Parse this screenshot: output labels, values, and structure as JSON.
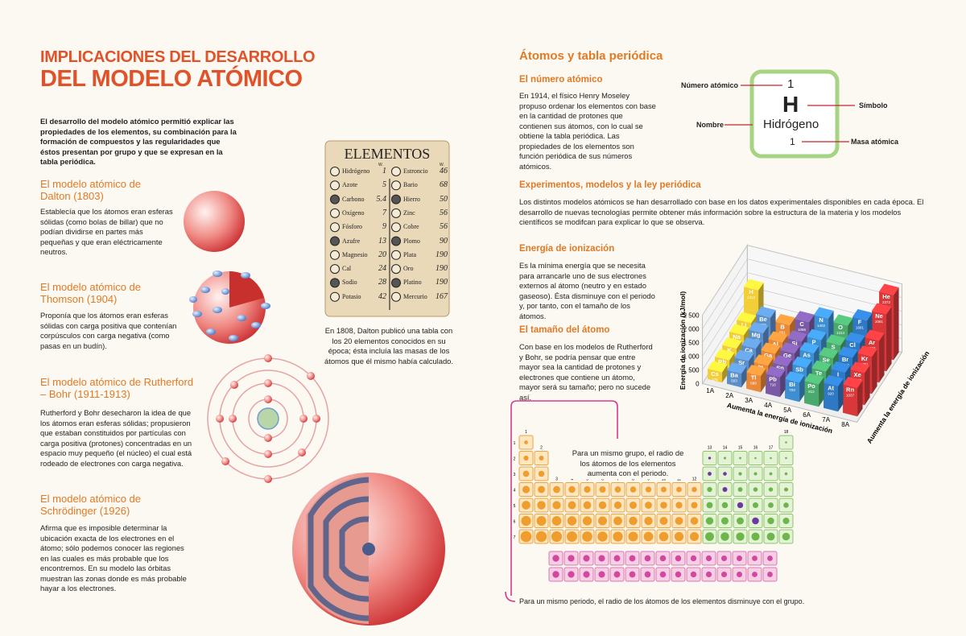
{
  "left": {
    "title": [
      "IMPLICACIONES DEL DESARROLLO",
      "DEL MODELO ATÓMICO"
    ],
    "intro": "El desarrollo del modelo atómico permitió explicar las propiedades de los elementos, su combinación para la formación de compuestos y las regularidades que éstos presentan por grupo y que se expresan en la tabla periódica.",
    "models": [
      {
        "heading": "El modelo atómico de Dalton (1803)",
        "text": "Establecía que los átomos eran esferas sólidas (como bolas de billar) que no podían dividirse en partes más pequeñas y que eran eléctricamente neutros."
      },
      {
        "heading": "El modelo atómico de Thomson (1904)",
        "text": "Proponía que los átomos eran esferas sólidas con carga positiva que contenían corpúsculos con carga negativa (como pasas en un budín)."
      },
      {
        "heading": "El modelo atómico de Rutherford – Bohr (1911-1913)",
        "text": "Rutherford y Bohr desecharon la idea de que los átomos eran esferas sólidas; propusieron que estaban constituidos por partículas con carga positiva (protones) concentradas en un espacio muy pequeño (el núcleo) el cual está rodeado de electrones con carga negativa."
      },
      {
        "heading": "El modelo atómico de Schrödinger (1926)",
        "text": "Afirma que es imposible determinar la ubicación exacta de los electrones en el átomo; sólo podemos conocer las regiones en las cuales es más probable que los encontremos. En su modelo las órbitas muestran las zonas donde es más probable hayar a los electrones."
      }
    ],
    "dalton_table": {
      "title": "ELEMENTOS",
      "weight_header": "W.",
      "columns": [
        [
          [
            "Hidrógeno",
            "1"
          ],
          [
            "Azote",
            "5"
          ],
          [
            "Carbono",
            "5.4"
          ],
          [
            "Oxígeno",
            "7"
          ],
          [
            "Fósforo",
            "9"
          ],
          [
            "Azufre",
            "13"
          ],
          [
            "Magnesio",
            "20"
          ],
          [
            "Cal",
            "24"
          ],
          [
            "Sodio",
            "28"
          ],
          [
            "Potasio",
            "42"
          ]
        ],
        [
          [
            "Estroncio",
            "46"
          ],
          [
            "Bario",
            "68"
          ],
          [
            "Hierro",
            "50"
          ],
          [
            "Zinc",
            "56"
          ],
          [
            "Cobre",
            "56"
          ],
          [
            "Plomo",
            "90"
          ],
          [
            "Plata",
            "190"
          ],
          [
            "Oro",
            "190"
          ],
          [
            "Platino",
            "190"
          ],
          [
            "Mercurio",
            "167"
          ]
        ]
      ],
      "caption": "En 1808, Dalton publicó una tabla con los 20 elementos conocidos en su época; ésta incluía las masas de los átomos que él mismo había calculado."
    }
  },
  "right": {
    "title": "Átomos y tabla periódica",
    "sections": [
      {
        "heading": "El número atómico",
        "text": "En 1914, el físico Henry Moseley propuso ordenar los elementos con base en la cantidad de protones que contienen sus átomos, con lo cual se obtiene la tabla periódica. Las propiedades de los elementos son función periódica de sus números atómicos."
      },
      {
        "heading": "Experimentos, modelos y la ley periódica",
        "text": "Los distintos modelos atómicos se han desarrollado con base en los datos experimentales disponibles en cada época. El desarrollo de nuevas tecnologías permite obtener más información sobre la estructura de la materia y los modelos científicos se modifcan para explicar lo que se observa."
      },
      {
        "heading": "Energía de ionización",
        "text": "Es la mínima energía que se necesita para arrancarle uno de sus electrones externos al átomo (neutro y en estado gaseoso). Ésta disminuye con el periodo y, por tanto, con el tamaño de los átomos."
      },
      {
        "heading": "El tamaño del átomo",
        "text": "Con base en los modelos de Rutherford y Bohr, se podría pensar que entre mayor sea la cantidad de protones y electrones que contiene un átomo, mayor será su tamaño; pero no sucede así."
      }
    ],
    "element_box": {
      "labels": {
        "number": "Número atómico",
        "symbol": "Símbolo",
        "name": "Nombre",
        "mass": "Masa atómica"
      },
      "number": 1,
      "symbol": "H",
      "name": "Hidrógeno",
      "mass": 1
    },
    "ionization_chart": {
      "y_label": "Energía de ionización (kJ/mol)",
      "x_label": "Aumenta la energía de ionización",
      "depth_label": "Aumenta la energía de ionización",
      "ylim": [
        0,
        2500
      ],
      "yticks": [
        0,
        500,
        {
          "value": 1000,
          "label": "1 000"
        },
        {
          "value": 1500,
          "label": "1 500"
        },
        {
          "value": 2000,
          "label": "2 000"
        },
        {
          "value": 2500,
          "label": "2 500"
        }
      ],
      "groups": [
        "1A",
        "2A",
        "3A",
        "4A",
        "5A",
        "6A",
        "7A",
        "8A"
      ],
      "colors": [
        "#f2cf36",
        "#5b8fc9",
        "#ea8a38",
        "#7a5aa6",
        "#3d8fd1",
        "#4aa96c",
        "#2f78c4",
        "#d8383a"
      ],
      "rows": [
        [
          {
            "symbol": "H",
            "value": 1312
          },
          null,
          null,
          null,
          null,
          null,
          null,
          {
            "symbol": "He",
            "value": 2372
          }
        ],
        [
          {
            "symbol": "Li",
            "value": 520
          },
          {
            "symbol": "Be",
            "value": 899
          },
          {
            "symbol": "B",
            "value": 801
          },
          {
            "symbol": "C",
            "value": 1086
          },
          {
            "symbol": "N",
            "value": 1402
          },
          {
            "symbol": "O",
            "value": 1314
          },
          {
            "symbol": "F",
            "value": 1681
          },
          {
            "symbol": "Ne",
            "value": 2081
          }
        ],
        [
          {
            "symbol": "Na",
            "value": 496
          },
          {
            "symbol": "Mg",
            "value": 738
          },
          {
            "symbol": "Al",
            "value": 578
          },
          {
            "symbol": "Si",
            "value": 786
          },
          {
            "symbol": "P",
            "value": 1012
          },
          {
            "symbol": "S",
            "value": 1000
          },
          {
            "symbol": "Cl",
            "value": 1251
          },
          {
            "symbol": "Ar",
            "value": 1521
          }
        ],
        [
          {
            "symbol": "K",
            "value": 419
          },
          {
            "symbol": "Ca",
            "value": 590
          },
          {
            "symbol": "Ga",
            "value": 579
          },
          {
            "symbol": "Ge",
            "value": 762
          },
          {
            "symbol": "As",
            "value": 947
          },
          {
            "symbol": "Se",
            "value": 941
          },
          {
            "symbol": "Br",
            "value": 1140
          },
          {
            "symbol": "Kr",
            "value": 1351
          }
        ],
        [
          {
            "symbol": "Rb",
            "value": 403
          },
          {
            "symbol": "Sr",
            "value": 549
          },
          {
            "symbol": "In",
            "value": 558
          },
          {
            "symbol": "Sn",
            "value": 709
          },
          {
            "symbol": "Sb",
            "value": 834
          },
          {
            "symbol": "Te",
            "value": 869
          },
          {
            "symbol": "I",
            "value": 1008
          },
          {
            "symbol": "Xe",
            "value": 1170
          }
        ],
        [
          {
            "symbol": "Cs",
            "value": 376
          },
          {
            "symbol": "Ba",
            "value": 503
          },
          {
            "symbol": "Tl",
            "value": 589
          },
          {
            "symbol": "Pb",
            "value": 716
          },
          {
            "symbol": "Bi",
            "value": 703
          },
          {
            "symbol": "Po",
            "value": 812
          },
          {
            "symbol": "At",
            "value": 920
          },
          {
            "symbol": "Rn",
            "value": 1037
          }
        ]
      ]
    },
    "periodic_table": {
      "groups": [
        1,
        2,
        3,
        4,
        5,
        6,
        7,
        8,
        9,
        10,
        11,
        12,
        13,
        14,
        15,
        16,
        17,
        18
      ],
      "periods": [
        1,
        2,
        3,
        4,
        5,
        6,
        7
      ],
      "group_note": "Para un mismo grupo, el radio de los átomos de los elementos aumenta con el periodo.",
      "period_note": "Para un mismo periodo, el radio de los átomos de los elementos disminuye con el grupo."
    }
  }
}
